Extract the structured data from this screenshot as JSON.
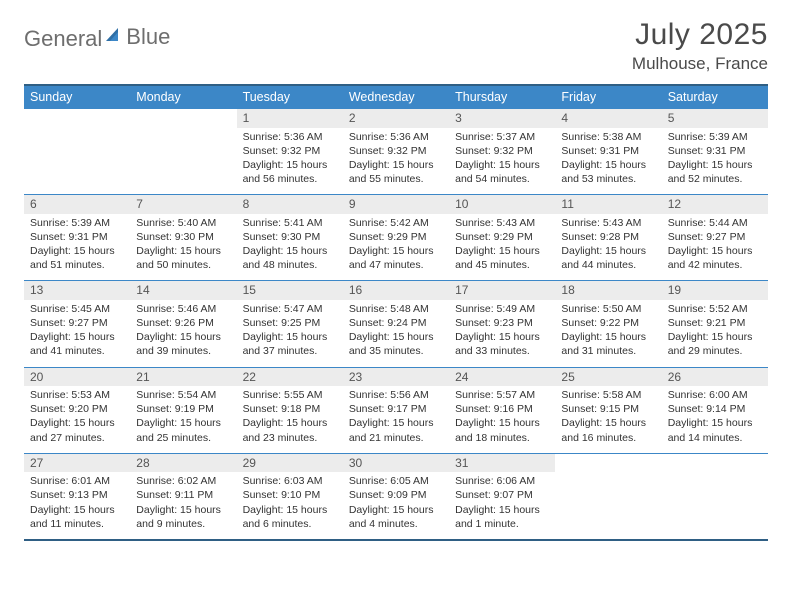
{
  "logo": {
    "text1": "General",
    "text2": "Blue"
  },
  "title": "July 2025",
  "location": "Mulhouse, France",
  "colors": {
    "header_bg": "#3c87c7",
    "header_border": "#2f5f84",
    "daynum_bg": "#ececec",
    "text_muted": "#6e6e6e",
    "logo_accent": "#2f6fa6"
  },
  "dow": [
    "Sunday",
    "Monday",
    "Tuesday",
    "Wednesday",
    "Thursday",
    "Friday",
    "Saturday"
  ],
  "weeks": [
    [
      null,
      null,
      {
        "n": "1",
        "sr": "5:36 AM",
        "ss": "9:32 PM",
        "dl": "15 hours and 56 minutes."
      },
      {
        "n": "2",
        "sr": "5:36 AM",
        "ss": "9:32 PM",
        "dl": "15 hours and 55 minutes."
      },
      {
        "n": "3",
        "sr": "5:37 AM",
        "ss": "9:32 PM",
        "dl": "15 hours and 54 minutes."
      },
      {
        "n": "4",
        "sr": "5:38 AM",
        "ss": "9:31 PM",
        "dl": "15 hours and 53 minutes."
      },
      {
        "n": "5",
        "sr": "5:39 AM",
        "ss": "9:31 PM",
        "dl": "15 hours and 52 minutes."
      }
    ],
    [
      {
        "n": "6",
        "sr": "5:39 AM",
        "ss": "9:31 PM",
        "dl": "15 hours and 51 minutes."
      },
      {
        "n": "7",
        "sr": "5:40 AM",
        "ss": "9:30 PM",
        "dl": "15 hours and 50 minutes."
      },
      {
        "n": "8",
        "sr": "5:41 AM",
        "ss": "9:30 PM",
        "dl": "15 hours and 48 minutes."
      },
      {
        "n": "9",
        "sr": "5:42 AM",
        "ss": "9:29 PM",
        "dl": "15 hours and 47 minutes."
      },
      {
        "n": "10",
        "sr": "5:43 AM",
        "ss": "9:29 PM",
        "dl": "15 hours and 45 minutes."
      },
      {
        "n": "11",
        "sr": "5:43 AM",
        "ss": "9:28 PM",
        "dl": "15 hours and 44 minutes."
      },
      {
        "n": "12",
        "sr": "5:44 AM",
        "ss": "9:27 PM",
        "dl": "15 hours and 42 minutes."
      }
    ],
    [
      {
        "n": "13",
        "sr": "5:45 AM",
        "ss": "9:27 PM",
        "dl": "15 hours and 41 minutes."
      },
      {
        "n": "14",
        "sr": "5:46 AM",
        "ss": "9:26 PM",
        "dl": "15 hours and 39 minutes."
      },
      {
        "n": "15",
        "sr": "5:47 AM",
        "ss": "9:25 PM",
        "dl": "15 hours and 37 minutes."
      },
      {
        "n": "16",
        "sr": "5:48 AM",
        "ss": "9:24 PM",
        "dl": "15 hours and 35 minutes."
      },
      {
        "n": "17",
        "sr": "5:49 AM",
        "ss": "9:23 PM",
        "dl": "15 hours and 33 minutes."
      },
      {
        "n": "18",
        "sr": "5:50 AM",
        "ss": "9:22 PM",
        "dl": "15 hours and 31 minutes."
      },
      {
        "n": "19",
        "sr": "5:52 AM",
        "ss": "9:21 PM",
        "dl": "15 hours and 29 minutes."
      }
    ],
    [
      {
        "n": "20",
        "sr": "5:53 AM",
        "ss": "9:20 PM",
        "dl": "15 hours and 27 minutes."
      },
      {
        "n": "21",
        "sr": "5:54 AM",
        "ss": "9:19 PM",
        "dl": "15 hours and 25 minutes."
      },
      {
        "n": "22",
        "sr": "5:55 AM",
        "ss": "9:18 PM",
        "dl": "15 hours and 23 minutes."
      },
      {
        "n": "23",
        "sr": "5:56 AM",
        "ss": "9:17 PM",
        "dl": "15 hours and 21 minutes."
      },
      {
        "n": "24",
        "sr": "5:57 AM",
        "ss": "9:16 PM",
        "dl": "15 hours and 18 minutes."
      },
      {
        "n": "25",
        "sr": "5:58 AM",
        "ss": "9:15 PM",
        "dl": "15 hours and 16 minutes."
      },
      {
        "n": "26",
        "sr": "6:00 AM",
        "ss": "9:14 PM",
        "dl": "15 hours and 14 minutes."
      }
    ],
    [
      {
        "n": "27",
        "sr": "6:01 AM",
        "ss": "9:13 PM",
        "dl": "15 hours and 11 minutes."
      },
      {
        "n": "28",
        "sr": "6:02 AM",
        "ss": "9:11 PM",
        "dl": "15 hours and 9 minutes."
      },
      {
        "n": "29",
        "sr": "6:03 AM",
        "ss": "9:10 PM",
        "dl": "15 hours and 6 minutes."
      },
      {
        "n": "30",
        "sr": "6:05 AM",
        "ss": "9:09 PM",
        "dl": "15 hours and 4 minutes."
      },
      {
        "n": "31",
        "sr": "6:06 AM",
        "ss": "9:07 PM",
        "dl": "15 hours and 1 minute."
      },
      null,
      null
    ]
  ],
  "labels": {
    "sunrise": "Sunrise:",
    "sunset": "Sunset:",
    "daylight": "Daylight:"
  }
}
